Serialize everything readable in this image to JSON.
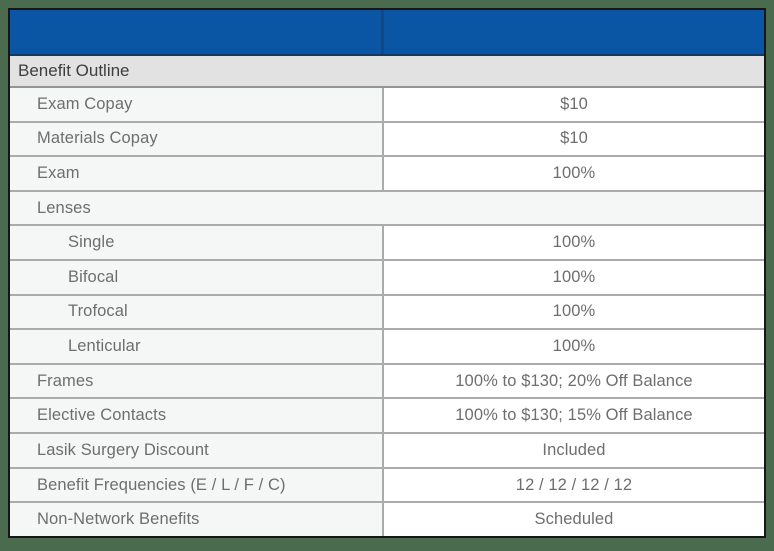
{
  "colors": {
    "frame_green": "#4b6b4e",
    "table_border": "#161616",
    "header_blue": "#0b55a5",
    "header_divider_blue": "#17477f",
    "header_bottom_navy": "#16395f",
    "section_gray": "#e2e2e2",
    "section_border": "#949494",
    "label_cell_gray": "#f5f6f6",
    "grid_line": "#ababab",
    "text_gray": "#6e6e6e",
    "section_text": "#3e3e3e"
  },
  "header": {
    "left_label": "",
    "right_label": ""
  },
  "section": {
    "title": "Benefit Outline"
  },
  "table": {
    "rows": [
      {
        "label": "Exam Copay",
        "value": "$10",
        "indent": false,
        "span": false
      },
      {
        "label": "Materials Copay",
        "value": "$10",
        "indent": false,
        "span": false
      },
      {
        "label": "Exam",
        "value": "100%",
        "indent": false,
        "span": false
      },
      {
        "label": "Lenses",
        "value": "",
        "indent": false,
        "span": true
      },
      {
        "label": "Single",
        "value": "100%",
        "indent": true,
        "span": false
      },
      {
        "label": "Bifocal",
        "value": "100%",
        "indent": true,
        "span": false
      },
      {
        "label": "Trofocal",
        "value": "100%",
        "indent": true,
        "span": false
      },
      {
        "label": "Lenticular",
        "value": "100%",
        "indent": true,
        "span": false
      },
      {
        "label": "Frames",
        "value": "100% to $130; 20% Off Balance",
        "indent": false,
        "span": false
      },
      {
        "label": "Elective Contacts",
        "value": "100% to $130; 15% Off Balance",
        "indent": false,
        "span": false
      },
      {
        "label": "Lasik Surgery Discount",
        "value": "Included",
        "indent": false,
        "span": false
      },
      {
        "label": "Benefit Frequencies (E / L / F / C)",
        "value": "12 / 12 / 12 / 12",
        "indent": false,
        "span": false
      },
      {
        "label": "Non-Network Benefits",
        "value": "Scheduled",
        "indent": false,
        "span": false
      }
    ]
  }
}
